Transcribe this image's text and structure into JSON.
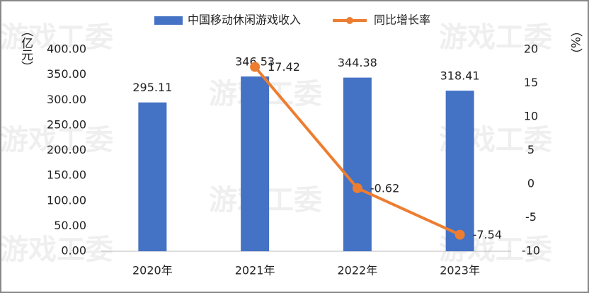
{
  "chart_data": {
    "type": "bar-line",
    "watermark": "游戏工委",
    "categories": [
      "2020年",
      "2021年",
      "2022年",
      "2023年"
    ],
    "series": [
      {
        "name": "中国移动休闲游戏收入",
        "type": "bar",
        "color": "#4472c4",
        "values": [
          295.11,
          346.53,
          344.38,
          318.41
        ]
      },
      {
        "name": "同比增长率",
        "type": "line",
        "axis": "y2",
        "color": "#ed7d31",
        "values": [
          null,
          17.42,
          -0.62,
          -7.54
        ]
      }
    ],
    "y_label": "（亿元）",
    "y2_label": "（%）",
    "ylim": [
      0,
      400
    ],
    "yticks": [
      {
        "value": 0,
        "label": "0.00"
      },
      {
        "value": 50,
        "label": "50.00"
      },
      {
        "value": 100,
        "label": "100.00"
      },
      {
        "value": 150,
        "label": "150.00"
      },
      {
        "value": 200,
        "label": "200.00"
      },
      {
        "value": 250,
        "label": "250.00"
      },
      {
        "value": 300,
        "label": "300.00"
      },
      {
        "value": 350,
        "label": "350.00"
      },
      {
        "value": 400,
        "label": "400.00"
      }
    ],
    "y2lim": [
      -10,
      20
    ],
    "y2ticks": [
      -10,
      -5,
      0,
      5,
      10,
      15,
      20
    ],
    "grid": false,
    "legend": "top"
  }
}
